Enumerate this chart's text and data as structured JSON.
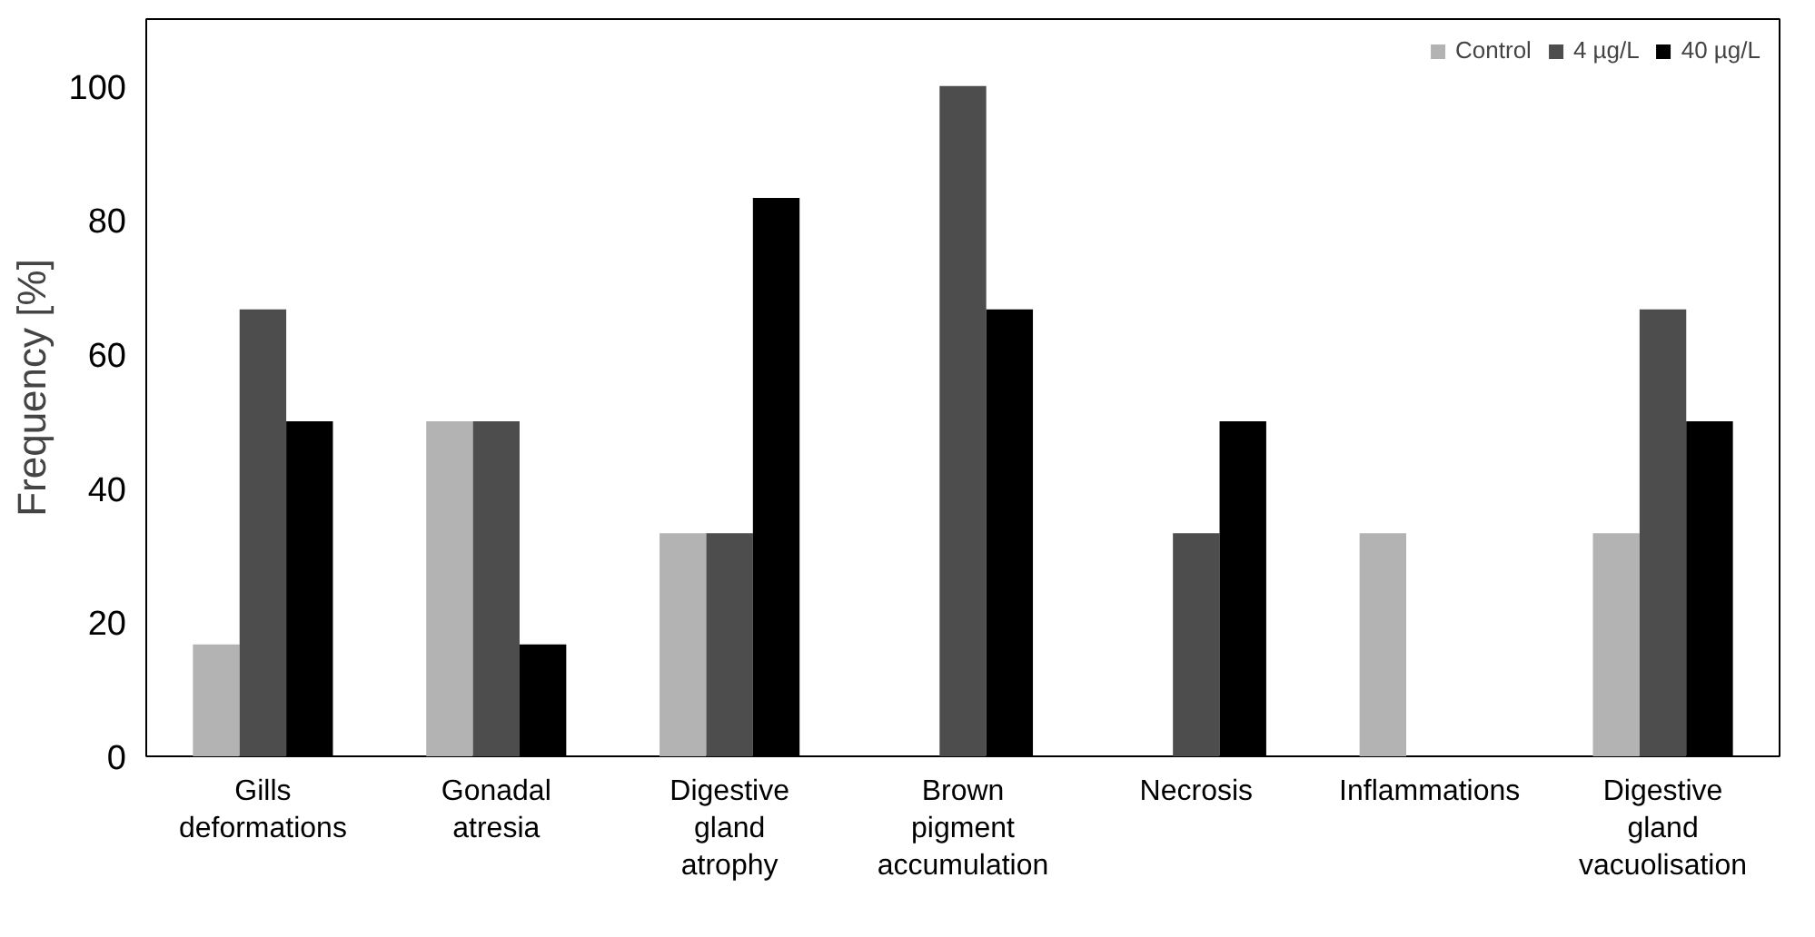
{
  "chart_data": {
    "type": "bar",
    "ylabel": "Frequency [%]",
    "categories": [
      "Gills deformations",
      "Gonadal atresia",
      "Digestive gland atrophy",
      "Brown pigment accumulation",
      "Necrosis",
      "Inflammations",
      "Digestive gland vacuolisation"
    ],
    "series": [
      {
        "name": "Control",
        "color": "#b3b3b3",
        "values": [
          16.7,
          50,
          33.3,
          0,
          0,
          33.3,
          33.3
        ]
      },
      {
        "name": "4 µg/L",
        "color": "#4d4d4d",
        "values": [
          66.7,
          50,
          33.3,
          100,
          33.3,
          0,
          66.7
        ]
      },
      {
        "name": "40 µg/L",
        "color": "#000000",
        "values": [
          50,
          16.7,
          83.3,
          66.7,
          50,
          0,
          50
        ]
      }
    ],
    "ylim": [
      0,
      110
    ],
    "yticks": [
      0,
      20,
      40,
      60,
      80,
      100
    ],
    "grid": false,
    "legend": "top right"
  }
}
